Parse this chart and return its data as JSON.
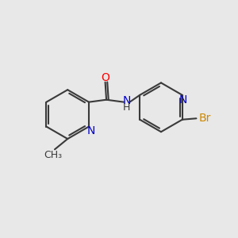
{
  "background_color": "#e8e8e8",
  "bond_color": "#3a3a3a",
  "bond_width": 1.5,
  "atom_colors": {
    "O": "#ff0000",
    "N": "#0000cc",
    "Br": "#cc8800",
    "C": "#3a3a3a",
    "H": "#3a3a3a"
  },
  "font_size": 10,
  "fig_size": [
    3.0,
    3.0
  ],
  "dpi": 100,
  "xlim": [
    0,
    10
  ],
  "ylim": [
    0,
    10
  ]
}
